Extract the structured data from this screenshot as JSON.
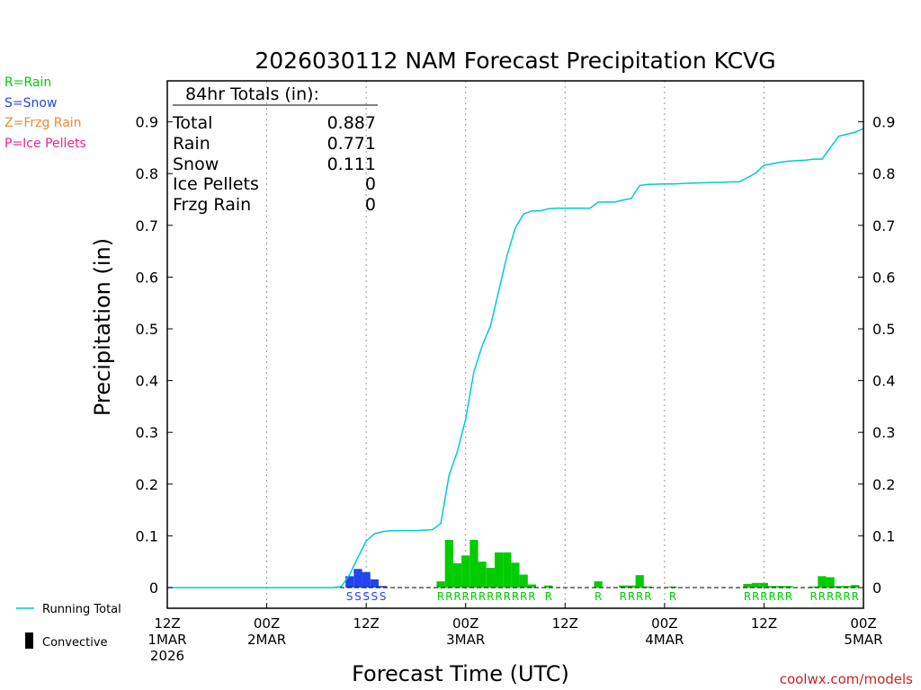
{
  "chart_data": {
    "type": "bar",
    "title": "2026030112 NAM Forecast Precipitation KCVG",
    "ylabel": "Precipitation  (in)",
    "xlabel": "Forecast Time (UTC)",
    "ylim": [
      0,
      0.97
    ],
    "xlim_hours": [
      0,
      84
    ],
    "yticks": [
      "0",
      "0.1",
      "0.2",
      "0.3",
      "0.4",
      "0.5",
      "0.6",
      "0.7",
      "0.8",
      "0.9"
    ],
    "ytick_values": [
      0,
      0.1,
      0.2,
      0.3,
      0.4,
      0.5,
      0.6,
      0.7,
      0.8,
      0.9
    ],
    "xticks": [
      {
        "hour": 0,
        "line1": "12Z",
        "line2": "1MAR",
        "line3": "2026"
      },
      {
        "hour": 12,
        "line1": "00Z",
        "line2": "2MAR",
        "line3": ""
      },
      {
        "hour": 24,
        "line1": "12Z",
        "line2": "",
        "line3": ""
      },
      {
        "hour": 36,
        "line1": "00Z",
        "line2": "3MAR",
        "line3": ""
      },
      {
        "hour": 48,
        "line1": "12Z",
        "line2": "",
        "line3": ""
      },
      {
        "hour": 60,
        "line1": "00Z",
        "line2": "4MAR",
        "line3": ""
      },
      {
        "hour": 72,
        "line1": "12Z",
        "line2": "",
        "line3": ""
      },
      {
        "hour": 84,
        "line1": "00Z",
        "line2": "5MAR",
        "line3": ""
      }
    ],
    "type_legend": [
      {
        "label": "R=Rain",
        "color": "#00cc00"
      },
      {
        "label": "S=Snow",
        "color": "#2244ee"
      },
      {
        "label": "Z=Frzg Rain",
        "color": "#ee8833"
      },
      {
        "label": "P=Ice Pellets",
        "color": "#ee2299"
      }
    ],
    "bottom_legend": [
      {
        "label": "Running Total",
        "kind": "line",
        "color": "#00cccc"
      },
      {
        "label": "Convective",
        "kind": "bar",
        "color": "#000000"
      }
    ],
    "totals": {
      "header": "84hr Totals (in):",
      "rows": [
        {
          "label": "Total",
          "value": "0.887"
        },
        {
          "label": "Rain",
          "value": "0.771"
        },
        {
          "label": "Snow",
          "value": "0.111"
        },
        {
          "label": "Ice Pellets",
          "value": "0"
        },
        {
          "label": "Frzg Rain",
          "value": "0"
        }
      ]
    },
    "series": [
      {
        "name": "Snow",
        "color": "#2244ee",
        "bars": [
          {
            "hour": 22,
            "value": 0.022
          },
          {
            "hour": 23,
            "value": 0.036
          },
          {
            "hour": 24,
            "value": 0.03
          },
          {
            "hour": 25,
            "value": 0.016
          },
          {
            "hour": 26,
            "value": 0.003
          }
        ]
      },
      {
        "name": "Rain",
        "color": "#00cc00",
        "bars": [
          {
            "hour": 33,
            "value": 0.012
          },
          {
            "hour": 34,
            "value": 0.092
          },
          {
            "hour": 35,
            "value": 0.047
          },
          {
            "hour": 36,
            "value": 0.062
          },
          {
            "hour": 37,
            "value": 0.092
          },
          {
            "hour": 38,
            "value": 0.05
          },
          {
            "hour": 39,
            "value": 0.038
          },
          {
            "hour": 40,
            "value": 0.068
          },
          {
            "hour": 41,
            "value": 0.068
          },
          {
            "hour": 42,
            "value": 0.048
          },
          {
            "hour": 43,
            "value": 0.025
          },
          {
            "hour": 44,
            "value": 0.006
          },
          {
            "hour": 46,
            "value": 0.004
          },
          {
            "hour": 52,
            "value": 0.012
          },
          {
            "hour": 55,
            "value": 0.004
          },
          {
            "hour": 56,
            "value": 0.004
          },
          {
            "hour": 57,
            "value": 0.024
          },
          {
            "hour": 58,
            "value": 0.002
          },
          {
            "hour": 61,
            "value": 0.002
          },
          {
            "hour": 70,
            "value": 0.007
          },
          {
            "hour": 71,
            "value": 0.009
          },
          {
            "hour": 72,
            "value": 0.009
          },
          {
            "hour": 73,
            "value": 0.003
          },
          {
            "hour": 74,
            "value": 0.003
          },
          {
            "hour": 75,
            "value": 0.003
          },
          {
            "hour": 78,
            "value": 0.002
          },
          {
            "hour": 79,
            "value": 0.022
          },
          {
            "hour": 80,
            "value": 0.02
          },
          {
            "hour": 81,
            "value": 0.003
          },
          {
            "hour": 82,
            "value": 0.003
          },
          {
            "hour": 83,
            "value": 0.005
          }
        ]
      }
    ],
    "type_codes": [
      {
        "hour": 22,
        "code": "S",
        "color": "#2244ee"
      },
      {
        "hour": 23,
        "code": "S",
        "color": "#2244ee"
      },
      {
        "hour": 24,
        "code": "S",
        "color": "#2244ee"
      },
      {
        "hour": 25,
        "code": "S",
        "color": "#2244ee"
      },
      {
        "hour": 26,
        "code": "S",
        "color": "#2244ee"
      },
      {
        "hour": 33,
        "code": "R",
        "color": "#00cc00"
      },
      {
        "hour": 34,
        "code": "R",
        "color": "#00cc00"
      },
      {
        "hour": 35,
        "code": "R",
        "color": "#00cc00"
      },
      {
        "hour": 36,
        "code": "R",
        "color": "#00cc00"
      },
      {
        "hour": 37,
        "code": "R",
        "color": "#00cc00"
      },
      {
        "hour": 38,
        "code": "R",
        "color": "#00cc00"
      },
      {
        "hour": 39,
        "code": "R",
        "color": "#00cc00"
      },
      {
        "hour": 40,
        "code": "R",
        "color": "#00cc00"
      },
      {
        "hour": 41,
        "code": "R",
        "color": "#00cc00"
      },
      {
        "hour": 42,
        "code": "R",
        "color": "#00cc00"
      },
      {
        "hour": 43,
        "code": "R",
        "color": "#00cc00"
      },
      {
        "hour": 44,
        "code": "R",
        "color": "#00cc00"
      },
      {
        "hour": 46,
        "code": "R",
        "color": "#00cc00"
      },
      {
        "hour": 52,
        "code": "R",
        "color": "#00cc00"
      },
      {
        "hour": 55,
        "code": "R",
        "color": "#00cc00"
      },
      {
        "hour": 56,
        "code": "R",
        "color": "#00cc00"
      },
      {
        "hour": 57,
        "code": "R",
        "color": "#00cc00"
      },
      {
        "hour": 58,
        "code": "R",
        "color": "#00cc00"
      },
      {
        "hour": 61,
        "code": "R",
        "color": "#00cc00"
      },
      {
        "hour": 70,
        "code": "R",
        "color": "#00cc00"
      },
      {
        "hour": 71,
        "code": "R",
        "color": "#00cc00"
      },
      {
        "hour": 72,
        "code": "R",
        "color": "#00cc00"
      },
      {
        "hour": 73,
        "code": "R",
        "color": "#00cc00"
      },
      {
        "hour": 74,
        "code": "R",
        "color": "#00cc00"
      },
      {
        "hour": 75,
        "code": "R",
        "color": "#00cc00"
      },
      {
        "hour": 78,
        "code": "R",
        "color": "#00cc00"
      },
      {
        "hour": 79,
        "code": "R",
        "color": "#00cc00"
      },
      {
        "hour": 80,
        "code": "R",
        "color": "#00cc00"
      },
      {
        "hour": 81,
        "code": "R",
        "color": "#00cc00"
      },
      {
        "hour": 82,
        "code": "R",
        "color": "#00cc00"
      },
      {
        "hour": 83,
        "code": "R",
        "color": "#00cc00"
      }
    ],
    "running_total": {
      "name": "Running Total",
      "color": "#00cccc",
      "x": [
        0,
        20,
        21,
        22,
        23,
        24,
        25,
        26,
        27,
        28,
        30,
        32,
        33,
        34,
        35,
        36,
        37,
        38,
        39,
        40,
        41,
        42,
        43,
        44,
        45,
        46,
        47,
        50,
        51,
        52,
        53,
        54,
        55,
        56,
        57,
        58,
        60,
        61,
        64,
        66,
        67,
        68,
        69,
        70,
        71,
        72,
        73,
        74,
        75,
        76,
        77,
        78,
        79,
        80,
        81,
        82,
        83,
        84
      ],
      "y": [
        0,
        0,
        0.002,
        0.025,
        0.058,
        0.09,
        0.104,
        0.108,
        0.11,
        0.11,
        0.11,
        0.112,
        0.124,
        0.217,
        0.263,
        0.325,
        0.417,
        0.467,
        0.506,
        0.574,
        0.642,
        0.695,
        0.722,
        0.728,
        0.728,
        0.732,
        0.733,
        0.733,
        0.733,
        0.745,
        0.745,
        0.745,
        0.749,
        0.752,
        0.777,
        0.779,
        0.78,
        0.78,
        0.782,
        0.783,
        0.783,
        0.784,
        0.784,
        0.792,
        0.801,
        0.816,
        0.819,
        0.822,
        0.824,
        0.825,
        0.826,
        0.828,
        0.828,
        0.85,
        0.872,
        0.876,
        0.88,
        0.887
      ]
    }
  },
  "credit": "coolwx.com/models"
}
